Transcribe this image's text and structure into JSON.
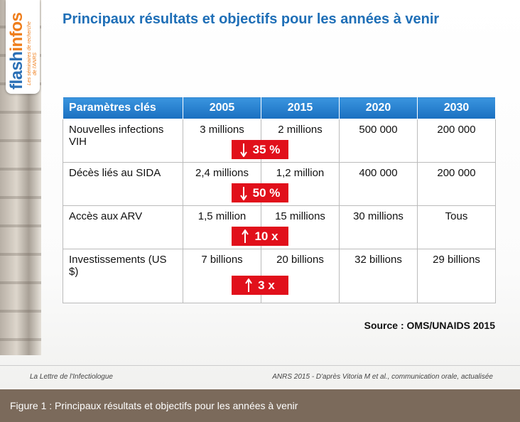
{
  "logo": {
    "brand": [
      "flash",
      "infos"
    ],
    "tagline": [
      "Les séminaires de recherche",
      "de l'ANRS"
    ]
  },
  "title": "Principaux résultats et objectifs pour les années à venir",
  "table": {
    "header": [
      "Paramètres clés",
      "2005",
      "2015",
      "2020",
      "2030"
    ],
    "rows": [
      [
        "Nouvelles infections VIH",
        "3 millions",
        "2 millions",
        "500 000",
        "200 000"
      ],
      [
        "Décès liés au SIDA",
        "2,4 millions",
        "1,2 million",
        "400 000",
        "200 000"
      ],
      [
        "Accès aux ARV",
        "1,5 million",
        "15 millions",
        "30 millions",
        "Tous"
      ],
      [
        "Investissements (US $)",
        "7 billions",
        "20 billions",
        "32 billions",
        "29 billions"
      ]
    ],
    "badges": [
      {
        "label": "35 %",
        "direction": "down"
      },
      {
        "label": "50 %",
        "direction": "down"
      },
      {
        "label": "10 x",
        "direction": "up"
      },
      {
        "label": "3 x",
        "direction": "up"
      }
    ]
  },
  "source": "Source : OMS/UNAIDS 2015",
  "footer": {
    "left": "La Lettre de l'Infectiologue",
    "right": "ANRS 2015 - D'après Vitoria M et al., communication orale, actualisée"
  },
  "caption": "Figure 1 : Principaux résultats et objectifs pour les années à venir"
}
